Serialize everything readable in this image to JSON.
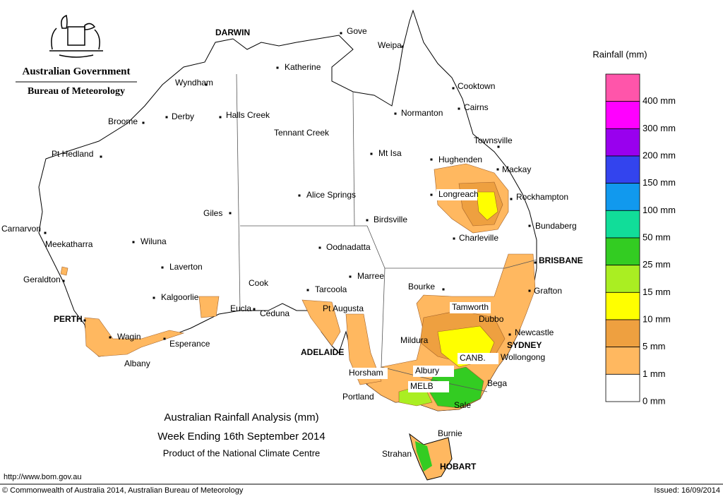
{
  "header": {
    "agency": "Australian Government",
    "bureau": "Bureau of Meteorology"
  },
  "title": {
    "line1": "Australian Rainfall Analysis (mm)",
    "line2": "Week Ending 16th September 2014",
    "line3": "Product of the National Climate Centre"
  },
  "legend": {
    "title": "Rainfall (mm)",
    "colors": [
      "#ff55aa",
      "#ff00ff",
      "#9900ee",
      "#3344ee",
      "#1199ee",
      "#11dd99",
      "#33cc22",
      "#aaee22",
      "#ffff00",
      "#eea040",
      "#ffb860",
      "#ffffff"
    ],
    "labels": [
      "400 mm",
      "300 mm",
      "200 mm",
      "150 mm",
      "100 mm",
      "50 mm",
      "25 mm",
      "15 mm",
      "10 mm",
      "5 mm",
      "1 mm",
      "0 mm"
    ]
  },
  "places": [
    "DARWIN",
    "Gove",
    "Weipa",
    "Katherine",
    "Wyndham",
    "Cooktown",
    "Cairns",
    "Normanton",
    "Broome",
    "Derby",
    "Halls Creek",
    "Tennant Creek",
    "Townsville",
    "Pt Hedland",
    "Mt Isa",
    "Hughenden",
    "Mackay",
    "Longreach",
    "Alice Springs",
    "Rockhampton",
    "Giles",
    "Birdsville",
    "Bundaberg",
    "Carnarvon",
    "Meekatharra",
    "Wiluna",
    "Charleville",
    "Oodnadatta",
    "BRISBANE",
    "Laverton",
    "Marree",
    "Geraldton",
    "Cook",
    "Bourke",
    "Grafton",
    "Tarcoola",
    "Kalgoorlie",
    "Tamworth",
    "Pt Augusta",
    "Eucla",
    "Ceduna",
    "PERTH",
    "Dubbo",
    "Wagin",
    "Newcastle",
    "Mildura",
    "Esperance",
    "SYDNEY",
    "ADELAIDE",
    "CANB.",
    "Wollongong",
    "Albany",
    "Horsham",
    "Albury",
    "Bega",
    "MELB",
    "Portland",
    "Sale",
    "Burnie",
    "Strahan",
    "HOBART"
  ],
  "footer": {
    "url": "http://www.bom.gov.au",
    "copyright": "© Commonwealth of Australia 2014, Australian Bureau of Meteorology",
    "issued": "Issued: 16/09/2014"
  }
}
